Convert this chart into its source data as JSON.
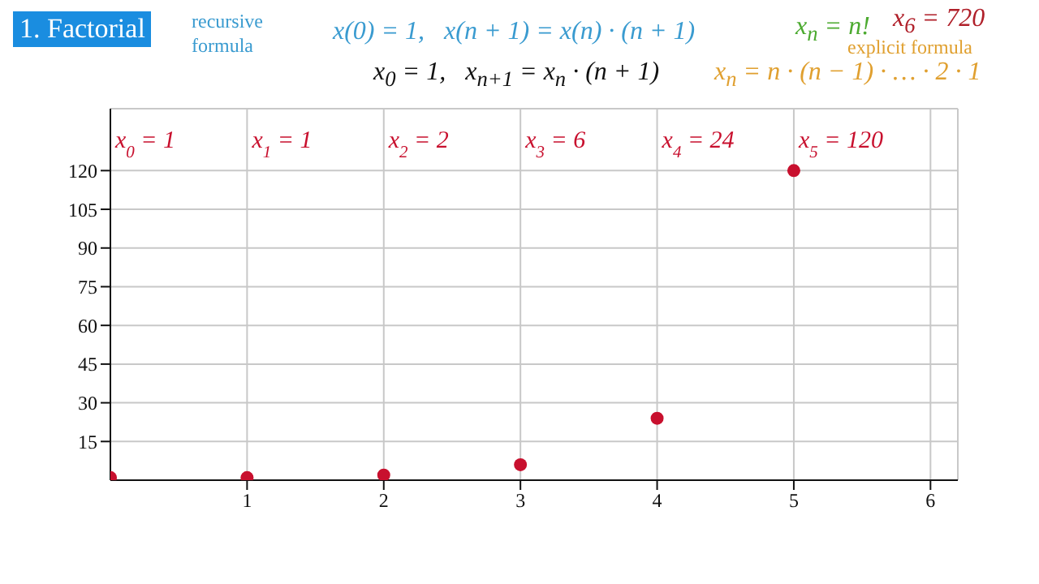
{
  "chart_data": {
    "type": "scatter",
    "title": "1. Factorial",
    "annotations": [
      "recursive formula",
      "x(0) = 1,   x(n + 1) = x(n) · (n + 1)",
      "x$_{0}$ = 1,   x$_{n+1}$ = x$_{n}$ · (n + 1)",
      "x$_{n}$ = n!",
      "x$_{6}$ = 720",
      "explicit formula",
      "x$_{n}$ = n · (n − 1) · … · 2 · 1",
      "x$_{0}$ = 1",
      "x$_{1}$ = 1",
      "x$_{2}$ = 2",
      "x$_{3}$ = 6",
      "x$_{4}$ = 24",
      "x$_{5}$ = 120"
    ],
    "x": [
      0,
      1,
      2,
      3,
      4,
      5
    ],
    "values": [
      1,
      1,
      2,
      6,
      24,
      120
    ],
    "color": "#c8102e",
    "xlim": [
      0,
      6.2
    ],
    "ylim": [
      0,
      144
    ],
    "xticks": [
      1,
      2,
      3,
      4,
      5,
      6
    ],
    "yticks": [
      15,
      30,
      45,
      60,
      75,
      90,
      105,
      120
    ],
    "grid": true,
    "marker": "circle"
  }
}
